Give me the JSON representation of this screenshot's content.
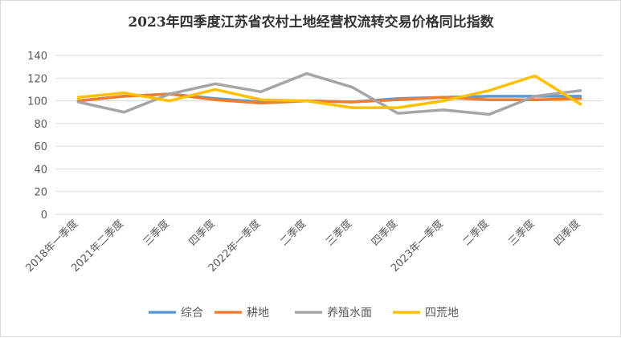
{
  "chart_data": {
    "type": "line",
    "title": "2023年四季度江苏省农村土地经营权流转交易价格同比指数",
    "categories": [
      "2018年一季度",
      "2021年二季度",
      "三季度",
      "四季度",
      "2022年一季度",
      "二季度",
      "三季度",
      "四季度",
      "2023年一季度",
      "二季度",
      "三季度",
      "四季度"
    ],
    "ylim": [
      0,
      140
    ],
    "yticks": [
      0,
      20,
      40,
      60,
      80,
      100,
      120,
      140
    ],
    "grid": true,
    "legend_position": "bottom",
    "series": [
      {
        "name": "综合",
        "color": "#5b9bd5",
        "values": [
          100,
          104,
          106,
          102,
          99,
          100,
          99,
          102,
          103,
          104,
          104,
          104
        ]
      },
      {
        "name": "耕地",
        "color": "#ed7d31",
        "values": [
          100,
          104,
          106,
          101,
          98,
          100,
          99,
          101,
          103,
          101,
          101,
          102
        ]
      },
      {
        "name": "养殖水面",
        "color": "#a5a5a5",
        "values": [
          99,
          90,
          106,
          115,
          108,
          124,
          112,
          89,
          92,
          88,
          104,
          109
        ]
      },
      {
        "name": "四荒地",
        "color": "#ffc000",
        "values": [
          103,
          107,
          100,
          110,
          101,
          100,
          94,
          94,
          100,
          109,
          122,
          97
        ]
      }
    ]
  }
}
